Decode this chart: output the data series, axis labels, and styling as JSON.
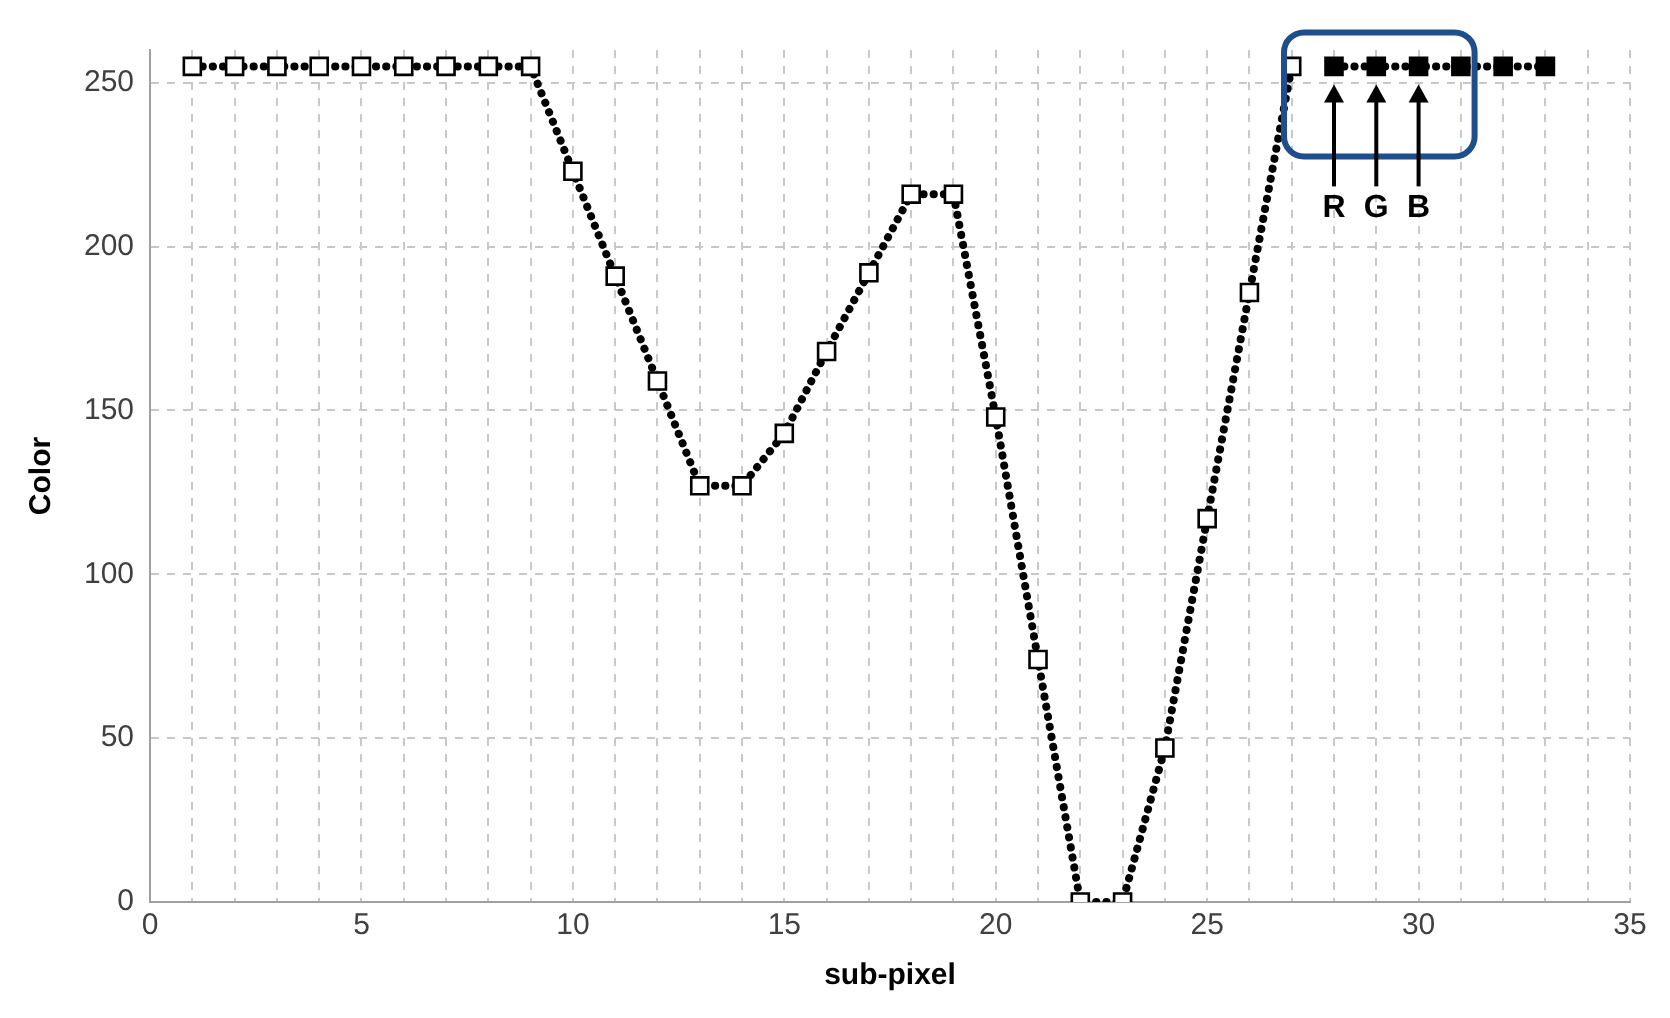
{
  "chart_data": {
    "type": "line",
    "xlabel": "sub-pixel",
    "ylabel": "Color",
    "xlim": [
      0,
      35
    ],
    "xticks": [
      0,
      {
        "value": 1,
        "label": null
      },
      {
        "value": 2,
        "label": null
      },
      {
        "value": 3,
        "label": null
      },
      {
        "value": 4,
        "label": null
      },
      5,
      {
        "value": 6,
        "label": null
      },
      {
        "value": 7,
        "label": null
      },
      {
        "value": 8,
        "label": null
      },
      {
        "value": 9,
        "label": null
      },
      10,
      {
        "value": 11,
        "label": null
      },
      {
        "value": 12,
        "label": null
      },
      {
        "value": 13,
        "label": null
      },
      {
        "value": 14,
        "label": null
      },
      15,
      {
        "value": 16,
        "label": null
      },
      {
        "value": 17,
        "label": null
      },
      {
        "value": 18,
        "label": null
      },
      {
        "value": 19,
        "label": null
      },
      20,
      {
        "value": 21,
        "label": null
      },
      {
        "value": 22,
        "label": null
      },
      {
        "value": 23,
        "label": null
      },
      {
        "value": 24,
        "label": null
      },
      25,
      {
        "value": 26,
        "label": null
      },
      {
        "value": 27,
        "label": null
      },
      {
        "value": 28,
        "label": null
      },
      {
        "value": 29,
        "label": null
      },
      30,
      {
        "value": 31,
        "label": null
      },
      {
        "value": 32,
        "label": null
      },
      {
        "value": 33,
        "label": null
      },
      {
        "value": 34,
        "label": null
      },
      35
    ],
    "ylim": [
      0,
      260
    ],
    "yticks": [
      0,
      50,
      100,
      150,
      200,
      250
    ],
    "grid": true,
    "legend": false,
    "marker": "square",
    "line_style": "dotted",
    "series": [
      {
        "color": "#ffffff",
        "x": [
          1,
          2,
          3,
          4,
          5,
          6,
          7,
          8,
          9,
          10,
          11,
          12,
          13,
          14,
          15,
          16,
          17,
          18,
          19,
          20,
          21,
          22,
          23,
          24,
          25,
          26,
          27
        ],
        "values": [
          255,
          255,
          255,
          255,
          255,
          255,
          255,
          255,
          255,
          223,
          191,
          159,
          127,
          127,
          143,
          168,
          192,
          216,
          216,
          148,
          74,
          0,
          0,
          47,
          117,
          186,
          255
        ]
      },
      {
        "color": "#000000",
        "x": [
          28,
          29,
          30,
          31,
          32,
          33
        ],
        "values": [
          255,
          255,
          255,
          255,
          255,
          255
        ]
      }
    ],
    "annotations": [
      "R",
      "G",
      "B"
    ]
  }
}
